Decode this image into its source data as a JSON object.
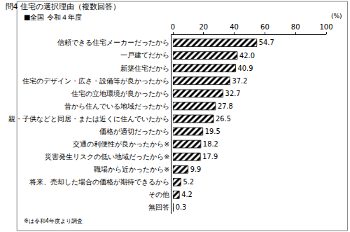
{
  "chart_data": {
    "type": "bar",
    "orientation": "horizontal",
    "title": "問4 住宅の選択理由（複数回答）",
    "subtitle": "■全国 令和４年度",
    "xlabel": "(%)",
    "note": "※は令和4年度より調査",
    "categories": [
      "信頼できる住宅メーカーだったから",
      "一戸建てだから",
      "新築住宅だから",
      "住宅のデザイン・広さ・設備等が良かったから",
      "住宅の立地環境が良かったから",
      "昔から住んでいる地域だったから",
      "親・子供などと同居・または近くに住んでいたから",
      "価格が適切だったから",
      "交通の利便性が良かったから※",
      "災害発生リスクの低い地域だったから※",
      "職場から近かったから※",
      "将来、売却した場合の価格が期待できるから",
      "その他",
      "無回答"
    ],
    "values": [
      54.7,
      42.0,
      40.9,
      37.2,
      32.7,
      27.8,
      26.5,
      19.5,
      18.2,
      17.9,
      9.9,
      5.2,
      4.2,
      0.3
    ],
    "value_labels": [
      "54.7",
      "42.0",
      "40.9",
      "37.2",
      "32.7",
      "27.8",
      "26.5",
      "19.5",
      "18.2",
      "17.9",
      "9.9",
      "5.2",
      "4.2",
      "0.3"
    ],
    "color": "#000000",
    "xlim": [
      0,
      100
    ],
    "xticks": [
      0,
      20,
      40,
      60,
      80,
      100
    ],
    "grid": false,
    "data_labels": true
  }
}
